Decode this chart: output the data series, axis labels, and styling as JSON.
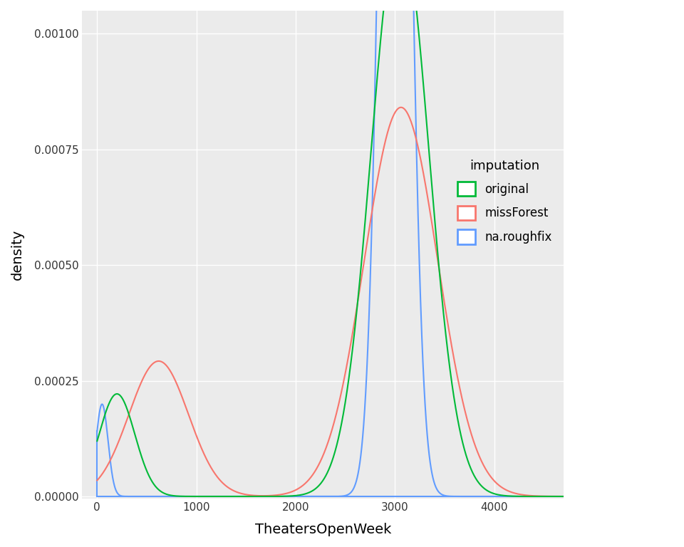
{
  "xlabel": "TheatersOpenWeek",
  "ylabel": "density",
  "legend_title": "imputation",
  "legend_labels": [
    "original",
    "missForest",
    "na.roughfix"
  ],
  "colors": {
    "original": "#00BA38",
    "missForest": "#F8766D",
    "na.roughfix": "#619CFF"
  },
  "xlim": [
    -150,
    4700
  ],
  "ylim": [
    -5e-06,
    0.00105
  ],
  "xticks": [
    0,
    1000,
    2000,
    3000,
    4000
  ],
  "yticks": [
    0.0,
    0.00025,
    0.0005,
    0.00075,
    0.001
  ],
  "background_color": "#FFFFFF",
  "panel_background": "#EBEBEB",
  "grid_color": "#FFFFFF",
  "line_width": 1.5
}
